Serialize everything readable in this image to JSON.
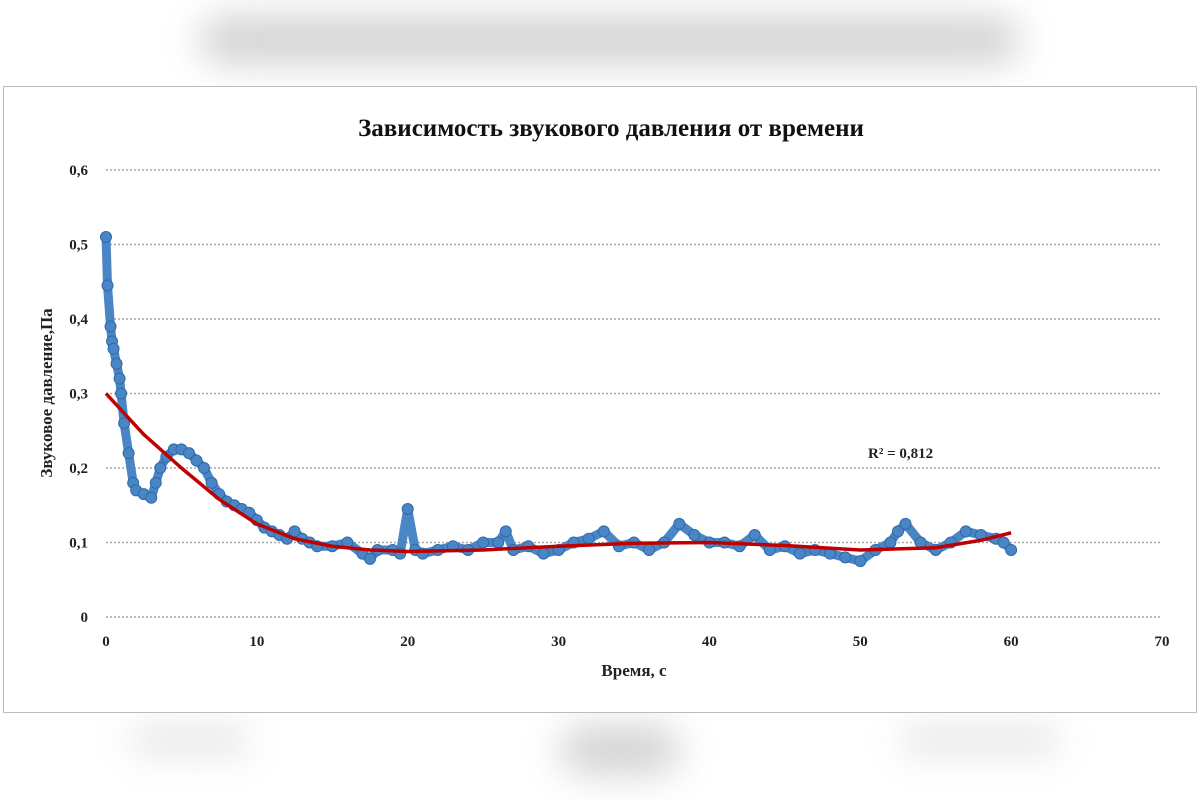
{
  "chart_data": {
    "type": "scatter",
    "title": "Зависимость звукового давления от времени",
    "xlabel": "Время, с",
    "ylabel": "Звуковое давление,Па",
    "xlim": [
      0,
      70
    ],
    "ylim": [
      0,
      0.6
    ],
    "xticks": [
      "0",
      "10",
      "20",
      "30",
      "40",
      "50",
      "60",
      "70"
    ],
    "yticks": [
      "0",
      "0,1",
      "0,2",
      "0,3",
      "0,4",
      "0,5",
      "0,6"
    ],
    "grid": "horizontal dotted",
    "annotation": "R² = 0,812",
    "colors": {
      "series": "#4a86c5",
      "series_edge": "#2f6aa8",
      "trend": "#c00000"
    },
    "series": [
      {
        "x": [
          0,
          0.1,
          0.3,
          0.4,
          0.5,
          0.7,
          0.9,
          1.0,
          1.2,
          1.5,
          1.8,
          2.0,
          2.5,
          3.0,
          3.3,
          3.6,
          4.0,
          4.5,
          5.0,
          5.5,
          6.0,
          6.5,
          7.0,
          7.5,
          8.0,
          8.5,
          9.0,
          9.5,
          10,
          10.5,
          11,
          11.5,
          12,
          12.5,
          13,
          13.5,
          14,
          15,
          16,
          17,
          17.5,
          18,
          19,
          19.5,
          20,
          20.5,
          21,
          22,
          23,
          24,
          25,
          26,
          26.5,
          27,
          28,
          29,
          30,
          31,
          32,
          33,
          34,
          35,
          36,
          37,
          38,
          39,
          40,
          41,
          42,
          43,
          44,
          45,
          46,
          47,
          48,
          49,
          50,
          51,
          52,
          52.5,
          53,
          54,
          55,
          56,
          57,
          58,
          59,
          59.5,
          60
        ],
        "y": [
          0.51,
          0.445,
          0.39,
          0.37,
          0.36,
          0.34,
          0.32,
          0.3,
          0.26,
          0.22,
          0.18,
          0.17,
          0.165,
          0.16,
          0.18,
          0.2,
          0.215,
          0.225,
          0.225,
          0.22,
          0.21,
          0.2,
          0.18,
          0.165,
          0.155,
          0.15,
          0.145,
          0.14,
          0.13,
          0.12,
          0.115,
          0.11,
          0.105,
          0.115,
          0.105,
          0.1,
          0.095,
          0.095,
          0.1,
          0.085,
          0.078,
          0.09,
          0.09,
          0.085,
          0.145,
          0.09,
          0.085,
          0.09,
          0.095,
          0.09,
          0.1,
          0.1,
          0.115,
          0.09,
          0.095,
          0.085,
          0.09,
          0.1,
          0.105,
          0.115,
          0.095,
          0.1,
          0.09,
          0.1,
          0.125,
          0.11,
          0.1,
          0.1,
          0.095,
          0.11,
          0.09,
          0.095,
          0.085,
          0.09,
          0.085,
          0.08,
          0.075,
          0.09,
          0.1,
          0.115,
          0.125,
          0.1,
          0.09,
          0.1,
          0.115,
          0.11,
          0.105,
          0.1,
          0.09
        ]
      }
    ],
    "trendline": {
      "type": "polynomial",
      "x": [
        0,
        2.5,
        5,
        7.5,
        10,
        12.5,
        15,
        17.5,
        20,
        25,
        30,
        35,
        40,
        45,
        50,
        55,
        58,
        60
      ],
      "y": [
        0.3,
        0.245,
        0.2,
        0.158,
        0.125,
        0.105,
        0.095,
        0.09,
        0.088,
        0.09,
        0.095,
        0.099,
        0.1,
        0.096,
        0.09,
        0.093,
        0.103,
        0.113
      ]
    }
  }
}
